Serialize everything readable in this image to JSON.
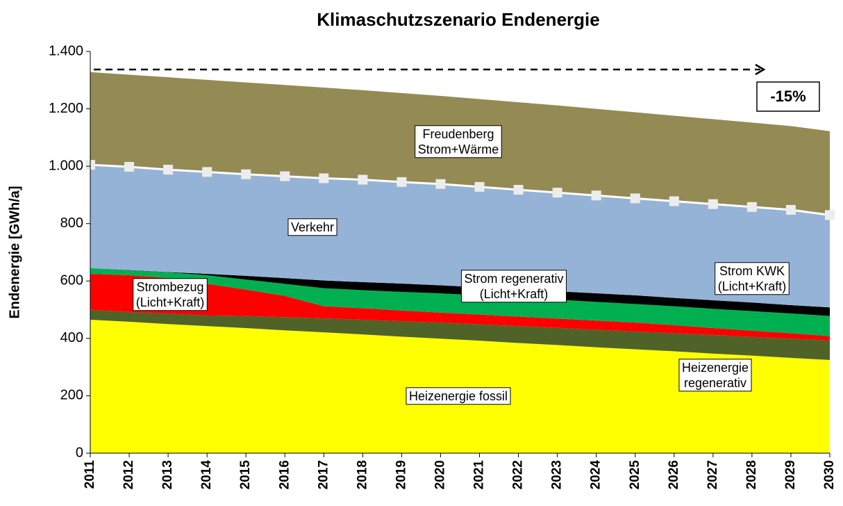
{
  "chart_data": {
    "type": "stacked_area",
    "title": "Klimaschutzszenario Endenergie",
    "y_label": "Endenergie  [GWh/a]",
    "annotation": "-15%",
    "categories": [
      "2011",
      "2012",
      "2013",
      "2014",
      "2015",
      "2016",
      "2017",
      "2018",
      "2019",
      "2020",
      "2021",
      "2022",
      "2023",
      "2024",
      "2025",
      "2026",
      "2027",
      "2028",
      "2029",
      "2030"
    ],
    "series": [
      {
        "name": "Heizenergie fossil",
        "color": "#ffff00",
        "values": [
          465,
          458,
          450,
          443,
          436,
          428,
          421,
          414,
          406,
          399,
          392,
          384,
          377,
          369,
          362,
          355,
          347,
          340,
          332,
          325
        ]
      },
      {
        "name": "Heizenergie\nregenerativ",
        "color": "#4f6228",
        "values": [
          35,
          34,
          36,
          37,
          42,
          46,
          49,
          51,
          54,
          56,
          57,
          59,
          60,
          61,
          62,
          63,
          65,
          65,
          67,
          68
        ]
      },
      {
        "name": "Strombezug\n(Licht+Kraft)",
        "color": "#ff0000",
        "values": [
          125,
          128,
          124,
          110,
          92,
          74,
          42,
          40,
          37,
          35,
          34,
          33,
          32,
          32,
          31,
          28,
          24,
          22,
          19,
          15
        ]
      },
      {
        "name": "Strom regenerativ\n(Licht+Kraft)",
        "color": "#00b050",
        "values": [
          20,
          17,
          20,
          30,
          35,
          42,
          63,
          63,
          65,
          67,
          67,
          66,
          66,
          65,
          65,
          66,
          67,
          68,
          69,
          70
        ]
      },
      {
        "name": "Strom KWK\n(Licht+Kraft)",
        "color": "#000000",
        "values": [
          0,
          1,
          1,
          5,
          13,
          20,
          27,
          28,
          29,
          28,
          28,
          29,
          29,
          30,
          30,
          29,
          30,
          30,
          29,
          30
        ]
      },
      {
        "name": "Verkehr",
        "color": "#95b3d7",
        "values": [
          360,
          360,
          357,
          355,
          354,
          355,
          356,
          357,
          354,
          353,
          350,
          347,
          344,
          341,
          338,
          337,
          335,
          333,
          332,
          322
        ]
      },
      {
        "name": "Freudenberg\nStrom+Wärme",
        "color": "#948a54",
        "values": [
          323,
          321,
          322,
          321,
          320,
          318,
          316,
          312,
          310,
          307,
          306,
          305,
          304,
          302,
          300,
          298,
          296,
          294,
          292,
          292
        ]
      }
    ],
    "ylim": [
      0,
      1400
    ],
    "yticks": [
      0,
      200,
      400,
      600,
      800,
      {
        "value": 1000,
        "label": "1.000"
      },
      {
        "value": 1200,
        "label": "1.200"
      },
      {
        "value": 1400,
        "label": "1.400"
      }
    ]
  }
}
